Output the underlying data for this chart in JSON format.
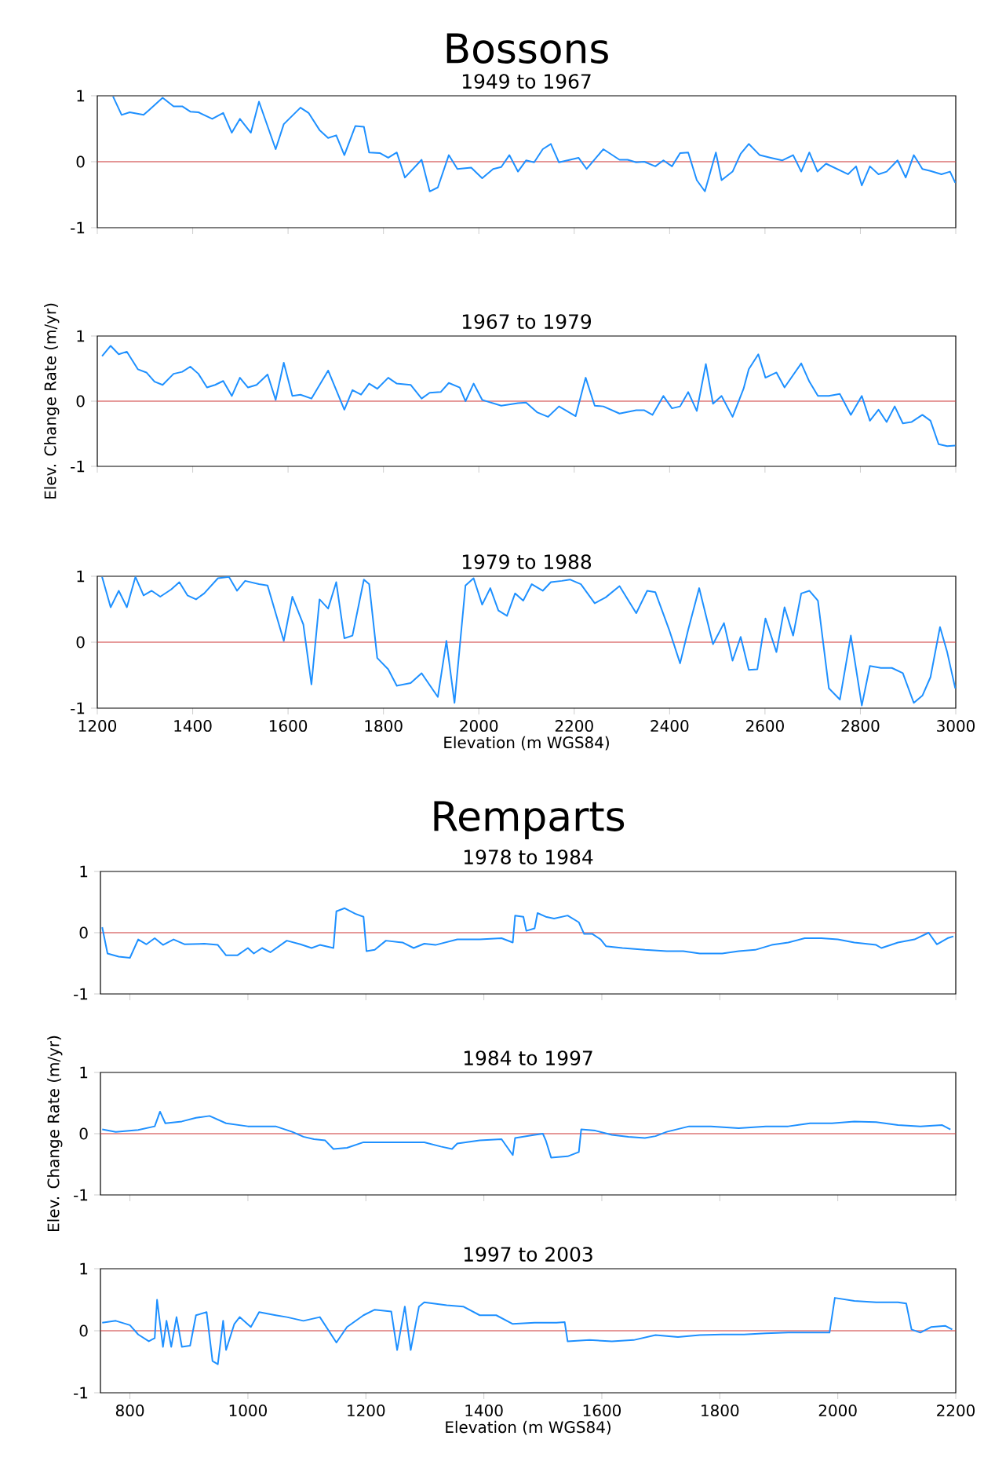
{
  "chart_data": [
    {
      "type": "line",
      "title": "Bossons",
      "subtitle": "1949 to 1967",
      "tick_labels": "y",
      "xlim": [
        1200,
        3000
      ],
      "ylim": [
        -1,
        1
      ],
      "xticks": [
        1200,
        1400,
        1600,
        1800,
        2000,
        2200,
        2400,
        2600,
        2800,
        3000
      ],
      "yticks": [
        -1,
        0,
        1
      ],
      "x": [
        1233,
        1251,
        1268,
        1297,
        1308,
        1337,
        1360,
        1378,
        1395,
        1412,
        1441,
        1464,
        1482,
        1499,
        1522,
        1539,
        1574,
        1591,
        1626,
        1643,
        1666,
        1684,
        1701,
        1718,
        1741,
        1759,
        1770,
        1793,
        1810,
        1828,
        1845,
        1880,
        1897,
        1914,
        1937,
        1955,
        1984,
        2007,
        2030,
        2047,
        2064,
        2082,
        2099,
        2116,
        2134,
        2151,
        2168,
        2186,
        2209,
        2226,
        2261,
        2295,
        2312,
        2330,
        2347,
        2370,
        2387,
        2405,
        2422,
        2439,
        2457,
        2474,
        2497,
        2509,
        2532,
        2549,
        2566,
        2589,
        2612,
        2636,
        2659,
        2676,
        2693,
        2710,
        2728,
        2751,
        2774,
        2791,
        2803,
        2820,
        2838,
        2855,
        2878,
        2895,
        2912,
        2930,
        2947,
        2970,
        2988,
        2999
      ],
      "series": [
        {
          "color": "#1e90ff",
          "values": [
            0.99,
            0.71,
            0.75,
            0.71,
            0.78,
            0.97,
            0.84,
            0.84,
            0.76,
            0.75,
            0.65,
            0.74,
            0.44,
            0.65,
            0.44,
            0.91,
            0.19,
            0.57,
            0.82,
            0.74,
            0.48,
            0.36,
            0.4,
            0.1,
            0.54,
            0.53,
            0.14,
            0.13,
            0.06,
            0.14,
            -0.24,
            0.03,
            -0.45,
            -0.39,
            0.1,
            -0.11,
            -0.09,
            -0.25,
            -0.11,
            -0.08,
            0.1,
            -0.15,
            0.02,
            -0.01,
            0.19,
            0.27,
            -0.01,
            0.02,
            0.06,
            -0.11,
            0.19,
            0.03,
            0.03,
            -0.01,
            0,
            -0.07,
            0.02,
            -0.07,
            0.13,
            0.14,
            -0.28,
            -0.45,
            0.14,
            -0.28,
            -0.15,
            0.12,
            0.27,
            0.1,
            0.06,
            0.02,
            0.1,
            -0.15,
            0.14,
            -0.15,
            -0.03,
            -0.11,
            -0.19,
            -0.07,
            -0.36,
            -0.07,
            -0.19,
            -0.15,
            0.02,
            -0.24,
            0.1,
            -0.11,
            -0.14,
            -0.19,
            -0.15,
            -0.32
          ]
        }
      ],
      "ref_lines": [
        {
          "axis": "y",
          "value": 0,
          "color": "#cc3333"
        }
      ]
    },
    {
      "type": "line",
      "title": "1967 to 1979",
      "ylabel": "Elev. Change Rate (m/yr)",
      "tick_labels": "y",
      "xlim": [
        1200,
        3000
      ],
      "ylim": [
        -1,
        1
      ],
      "xticks": [
        1200,
        1400,
        1600,
        1800,
        2000,
        2200,
        2400,
        2600,
        2800,
        3000
      ],
      "yticks": [
        -1,
        0,
        1
      ],
      "x": [
        1210,
        1228,
        1245,
        1262,
        1285,
        1303,
        1320,
        1337,
        1360,
        1378,
        1395,
        1412,
        1430,
        1447,
        1464,
        1482,
        1499,
        1516,
        1534,
        1557,
        1574,
        1591,
        1609,
        1626,
        1649,
        1684,
        1718,
        1735,
        1753,
        1770,
        1787,
        1810,
        1828,
        1857,
        1880,
        1897,
        1920,
        1937,
        1960,
        1972,
        1989,
        2007,
        2047,
        2082,
        2099,
        2122,
        2145,
        2168,
        2203,
        2224,
        2243,
        2261,
        2295,
        2330,
        2347,
        2364,
        2387,
        2405,
        2422,
        2439,
        2457,
        2476,
        2491,
        2509,
        2532,
        2555,
        2566,
        2586,
        2601,
        2624,
        2641,
        2676,
        2693,
        2711,
        2734,
        2757,
        2780,
        2803,
        2820,
        2838,
        2855,
        2872,
        2889,
        2907,
        2930,
        2947,
        2964,
        2982,
        2999
      ],
      "series": [
        {
          "color": "#1e90ff",
          "values": [
            0.69,
            0.85,
            0.72,
            0.76,
            0.49,
            0.44,
            0.3,
            0.25,
            0.42,
            0.45,
            0.53,
            0.42,
            0.21,
            0.25,
            0.31,
            0.08,
            0.36,
            0.21,
            0.25,
            0.41,
            0.02,
            0.59,
            0.08,
            0.1,
            0.04,
            0.47,
            -0.13,
            0.17,
            0.1,
            0.27,
            0.19,
            0.36,
            0.27,
            0.25,
            0.04,
            0.13,
            0.14,
            0.28,
            0.21,
            0,
            0.27,
            0.02,
            -0.07,
            -0.03,
            -0.02,
            -0.17,
            -0.24,
            -0.08,
            -0.23,
            0.36,
            -0.07,
            -0.08,
            -0.19,
            -0.14,
            -0.14,
            -0.21,
            0.08,
            -0.11,
            -0.08,
            0.14,
            -0.15,
            0.57,
            -0.04,
            0.08,
            -0.24,
            0.19,
            0.49,
            0.72,
            0.36,
            0.44,
            0.21,
            0.58,
            0.3,
            0.08,
            0.08,
            0.11,
            -0.21,
            0.08,
            -0.3,
            -0.13,
            -0.32,
            -0.08,
            -0.34,
            -0.32,
            -0.21,
            -0.3,
            -0.66,
            -0.69,
            -0.68
          ]
        }
      ],
      "ref_lines": [
        {
          "axis": "y",
          "value": 0,
          "color": "#cc3333"
        }
      ]
    },
    {
      "type": "line",
      "title": "1979 to 1988",
      "xlabel": "Elevation (m WGS84)",
      "xlim": [
        1200,
        3000
      ],
      "ylim": [
        -1,
        1
      ],
      "xticks": [
        1200,
        1400,
        1600,
        1800,
        2000,
        2200,
        2400,
        2600,
        2800,
        3000
      ],
      "yticks": [
        -1,
        0,
        1
      ],
      "x": [
        1210,
        1228,
        1245,
        1262,
        1280,
        1297,
        1314,
        1332,
        1355,
        1372,
        1389,
        1407,
        1424,
        1453,
        1476,
        1493,
        1510,
        1539,
        1557,
        1591,
        1609,
        1632,
        1649,
        1666,
        1684,
        1701,
        1718,
        1735,
        1759,
        1770,
        1787,
        1810,
        1828,
        1857,
        1880,
        1914,
        1932,
        1949,
        1972,
        1989,
        2007,
        2024,
        2041,
        2059,
        2076,
        2093,
        2111,
        2134,
        2151,
        2174,
        2191,
        2214,
        2243,
        2266,
        2295,
        2330,
        2353,
        2370,
        2399,
        2422,
        2439,
        2462,
        2491,
        2514,
        2532,
        2549,
        2566,
        2584,
        2601,
        2624,
        2641,
        2659,
        2676,
        2693,
        2711,
        2734,
        2757,
        2780,
        2803,
        2820,
        2843,
        2866,
        2889,
        2912,
        2930,
        2947,
        2967,
        2982,
        2999
      ],
      "series": [
        {
          "color": "#1e90ff",
          "values": [
            0.99,
            0.53,
            0.78,
            0.53,
            0.99,
            0.71,
            0.78,
            0.69,
            0.8,
            0.91,
            0.71,
            0.65,
            0.74,
            0.97,
            0.99,
            0.78,
            0.93,
            0.88,
            0.86,
            0.02,
            0.69,
            0.27,
            -0.64,
            0.65,
            0.51,
            0.91,
            0.06,
            0.1,
            0.95,
            0.88,
            -0.24,
            -0.41,
            -0.66,
            -0.62,
            -0.47,
            -0.83,
            0.02,
            -0.92,
            0.86,
            0.97,
            0.57,
            0.82,
            0.48,
            0.4,
            0.74,
            0.63,
            0.88,
            0.78,
            0.91,
            0.93,
            0.95,
            0.88,
            0.59,
            0.68,
            0.85,
            0.44,
            0.78,
            0.76,
            0.19,
            -0.32,
            0.19,
            0.82,
            -0.03,
            0.29,
            -0.28,
            0.08,
            -0.42,
            -0.41,
            0.36,
            -0.15,
            0.53,
            0.1,
            0.74,
            0.78,
            0.63,
            -0.7,
            -0.87,
            0.1,
            -0.96,
            -0.36,
            -0.39,
            -0.39,
            -0.47,
            -0.92,
            -0.81,
            -0.53,
            0.23,
            -0.15,
            -0.7
          ]
        }
      ],
      "ref_lines": [
        {
          "axis": "y",
          "value": 0,
          "color": "#cc3333"
        }
      ]
    },
    {
      "type": "line",
      "title": "Remparts",
      "subtitle": "1978 to 1984",
      "tick_labels": "y",
      "xlim": [
        750,
        2200
      ],
      "ylim": [
        -1,
        1
      ],
      "xticks": [
        800,
        1000,
        1200,
        1400,
        1600,
        1800,
        2000,
        2200
      ],
      "yticks": [
        -1,
        0,
        1
      ],
      "x": [
        753,
        762,
        781,
        800,
        814,
        828,
        842,
        856,
        874,
        893,
        926,
        949,
        963,
        982,
        1000,
        1010,
        1024,
        1038,
        1066,
        1089,
        1108,
        1122,
        1145,
        1150,
        1164,
        1182,
        1196,
        1201,
        1215,
        1234,
        1262,
        1281,
        1299,
        1318,
        1355,
        1393,
        1430,
        1449,
        1453,
        1467,
        1472,
        1486,
        1491,
        1505,
        1519,
        1542,
        1561,
        1570,
        1584,
        1598,
        1607,
        1635,
        1673,
        1710,
        1738,
        1766,
        1804,
        1832,
        1860,
        1888,
        1916,
        1944,
        1972,
        2000,
        2028,
        2065,
        2074,
        2102,
        2130,
        2154,
        2168,
        2186,
        2196
      ],
      "series": [
        {
          "color": "#1e90ff",
          "values": [
            0.09,
            -0.34,
            -0.39,
            -0.41,
            -0.11,
            -0.19,
            -0.09,
            -0.2,
            -0.11,
            -0.19,
            -0.18,
            -0.2,
            -0.37,
            -0.37,
            -0.25,
            -0.34,
            -0.25,
            -0.32,
            -0.13,
            -0.19,
            -0.25,
            -0.2,
            -0.25,
            0.35,
            0.4,
            0.31,
            0.26,
            -0.3,
            -0.28,
            -0.13,
            -0.16,
            -0.25,
            -0.18,
            -0.2,
            -0.11,
            -0.11,
            -0.09,
            -0.16,
            0.28,
            0.26,
            0.03,
            0.07,
            0.32,
            0.26,
            0.23,
            0.28,
            0.17,
            -0.02,
            -0.02,
            -0.11,
            -0.22,
            -0.25,
            -0.28,
            -0.3,
            -0.3,
            -0.34,
            -0.34,
            -0.3,
            -0.28,
            -0.2,
            -0.16,
            -0.09,
            -0.09,
            -0.11,
            -0.16,
            -0.2,
            -0.25,
            -0.16,
            -0.11,
            0,
            -0.19,
            -0.09,
            -0.06
          ]
        }
      ],
      "ref_lines": [
        {
          "axis": "y",
          "value": 0,
          "color": "#cc3333"
        }
      ]
    },
    {
      "type": "line",
      "title": "1984 to 1997",
      "ylabel": "Elev. Change Rate (m/yr)",
      "tick_labels": "y",
      "xlim": [
        750,
        2200
      ],
      "ylim": [
        -1,
        1
      ],
      "xticks": [
        800,
        1000,
        1200,
        1400,
        1600,
        1800,
        2000,
        2200
      ],
      "yticks": [
        -1,
        0,
        1
      ],
      "x": [
        753,
        776,
        814,
        842,
        851,
        860,
        888,
        912,
        935,
        963,
        1000,
        1047,
        1075,
        1094,
        1112,
        1131,
        1145,
        1168,
        1196,
        1224,
        1262,
        1299,
        1327,
        1346,
        1355,
        1393,
        1430,
        1449,
        1453,
        1486,
        1500,
        1505,
        1514,
        1542,
        1561,
        1565,
        1589,
        1617,
        1645,
        1673,
        1691,
        1710,
        1748,
        1785,
        1832,
        1878,
        1916,
        1953,
        1990,
        2028,
        2065,
        2102,
        2140,
        2177,
        2191
      ],
      "series": [
        {
          "color": "#1e90ff",
          "values": [
            0.07,
            0.03,
            0.06,
            0.12,
            0.36,
            0.17,
            0.2,
            0.26,
            0.29,
            0.17,
            0.12,
            0.12,
            0.03,
            -0.05,
            -0.09,
            -0.11,
            -0.25,
            -0.23,
            -0.14,
            -0.14,
            -0.14,
            -0.14,
            -0.21,
            -0.25,
            -0.16,
            -0.11,
            -0.09,
            -0.35,
            -0.07,
            -0.02,
            0,
            -0.11,
            -0.39,
            -0.37,
            -0.3,
            0.07,
            0.05,
            -0.02,
            -0.05,
            -0.07,
            -0.04,
            0.03,
            0.12,
            0.12,
            0.09,
            0.12,
            0.12,
            0.17,
            0.17,
            0.2,
            0.19,
            0.14,
            0.12,
            0.14,
            0.07
          ]
        }
      ],
      "ref_lines": [
        {
          "axis": "y",
          "value": 0,
          "color": "#cc3333"
        }
      ]
    },
    {
      "type": "line",
      "title": "1997 to 2003",
      "xlabel": "Elevation (m WGS84)",
      "xlim": [
        750,
        2200
      ],
      "ylim": [
        -1,
        1
      ],
      "xticks": [
        800,
        1000,
        1200,
        1400,
        1600,
        1800,
        2000,
        2200
      ],
      "yticks": [
        -1,
        0,
        1
      ],
      "x": [
        753,
        776,
        800,
        814,
        832,
        842,
        846,
        856,
        862,
        870,
        879,
        888,
        902,
        912,
        930,
        940,
        949,
        958,
        963,
        977,
        986,
        1005,
        1019,
        1047,
        1066,
        1094,
        1122,
        1150,
        1168,
        1196,
        1215,
        1243,
        1253,
        1266,
        1276,
        1290,
        1299,
        1337,
        1365,
        1393,
        1421,
        1449,
        1486,
        1523,
        1537,
        1542,
        1579,
        1617,
        1654,
        1691,
        1729,
        1766,
        1804,
        1841,
        1878,
        1916,
        1953,
        1986,
        1995,
        2028,
        2065,
        2102,
        2116,
        2125,
        2140,
        2158,
        2182,
        2194
      ],
      "series": [
        {
          "color": "#1e90ff",
          "values": [
            0.13,
            0.16,
            0.09,
            -0.06,
            -0.17,
            -0.12,
            0.5,
            -0.26,
            0.16,
            -0.26,
            0.22,
            -0.26,
            -0.24,
            0.25,
            0.3,
            -0.49,
            -0.54,
            0.16,
            -0.31,
            0.11,
            0.22,
            0.06,
            0.3,
            0.25,
            0.22,
            0.16,
            0.22,
            -0.19,
            0.06,
            0.25,
            0.34,
            0.31,
            -0.31,
            0.39,
            -0.31,
            0.39,
            0.46,
            0.41,
            0.39,
            0.25,
            0.25,
            0.11,
            0.13,
            0.13,
            0.14,
            -0.17,
            -0.15,
            -0.17,
            -0.15,
            -0.07,
            -0.1,
            -0.07,
            -0.06,
            -0.06,
            -0.04,
            -0.03,
            -0.03,
            -0.03,
            0.53,
            0.48,
            0.46,
            0.46,
            0.44,
            0.02,
            -0.03,
            0.06,
            0.08,
            0.02
          ]
        }
      ],
      "ref_lines": [
        {
          "axis": "y",
          "value": 0,
          "color": "#cc3333"
        }
      ]
    }
  ]
}
